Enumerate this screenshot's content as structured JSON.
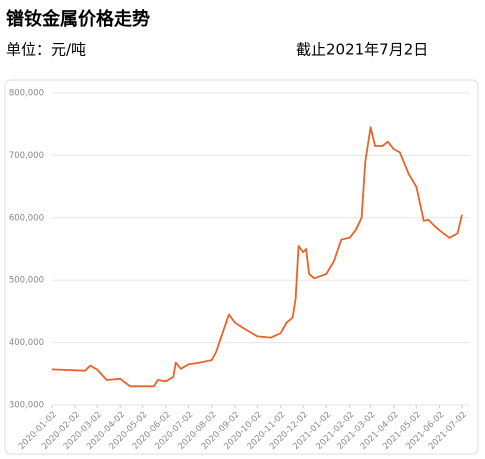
{
  "title": "镨钕金属价格走势",
  "unit": "单位：元/吨",
  "as_of": "截止2021年7月2日",
  "chart_data": {
    "type": "line",
    "color": "#e8632a",
    "grid": true,
    "x": [
      "2020-01-02",
      "2020-02-15",
      "2020-02-22",
      "2020-03-02",
      "2020-03-15",
      "2020-04-02",
      "2020-04-15",
      "2020-05-02",
      "2020-05-17",
      "2020-05-22",
      "2020-06-02",
      "2020-06-12",
      "2020-06-15",
      "2020-06-22",
      "2020-07-02",
      "2020-07-17",
      "2020-08-02",
      "2020-08-08",
      "2020-08-15",
      "2020-08-25",
      "2020-09-02",
      "2020-09-15",
      "2020-10-02",
      "2020-10-20",
      "2020-11-02",
      "2020-11-10",
      "2020-11-18",
      "2020-11-22",
      "2020-11-26",
      "2020-12-02",
      "2020-12-06",
      "2020-12-10",
      "2020-12-17",
      "2021-01-02",
      "2021-01-12",
      "2021-01-22",
      "2021-02-02",
      "2021-02-10",
      "2021-02-18",
      "2021-02-23",
      "2021-03-02",
      "2021-03-08",
      "2021-03-18",
      "2021-03-25",
      "2021-04-02",
      "2021-04-10",
      "2021-04-22",
      "2021-05-02",
      "2021-05-12",
      "2021-05-18",
      "2021-05-28",
      "2021-06-02",
      "2021-06-15",
      "2021-06-26",
      "2021-07-02"
    ],
    "values": [
      357000,
      355000,
      363000,
      357000,
      340000,
      342000,
      330000,
      330000,
      330000,
      340000,
      338000,
      345000,
      368000,
      358000,
      365000,
      368000,
      372000,
      385000,
      410000,
      445000,
      432000,
      422000,
      410000,
      408000,
      415000,
      432000,
      440000,
      470000,
      555000,
      545000,
      550000,
      510000,
      503000,
      510000,
      530000,
      565000,
      568000,
      580000,
      600000,
      690000,
      745000,
      715000,
      715000,
      722000,
      710000,
      705000,
      670000,
      650000,
      595000,
      597000,
      585000,
      580000,
      568000,
      575000,
      605000
    ],
    "xlim": [
      "2020-01-02",
      "2021-07-02"
    ],
    "xticks": [
      "2020-01-02",
      "2020-02-02",
      "2020-03-02",
      "2020-04-02",
      "2020-05-02",
      "2020-06-02",
      "2020-07-02",
      "2020-08-02",
      "2020-09-02",
      "2020-10-02",
      "2020-11-02",
      "2020-12-02",
      "2021-01-02",
      "2021-02-02",
      "2021-03-02",
      "2021-04-02",
      "2021-05-02",
      "2021-06-02",
      "2021-07-02"
    ],
    "ylim": [
      300000,
      800000
    ],
    "yticks": [
      {
        "value": 300000,
        "label": "300,000"
      },
      {
        "value": 400000,
        "label": "400,000"
      },
      {
        "value": 500000,
        "label": "500,000"
      },
      {
        "value": 600000,
        "label": "600,000"
      },
      {
        "value": 700000,
        "label": "700,000"
      },
      {
        "value": 800000,
        "label": "800,000"
      }
    ]
  }
}
